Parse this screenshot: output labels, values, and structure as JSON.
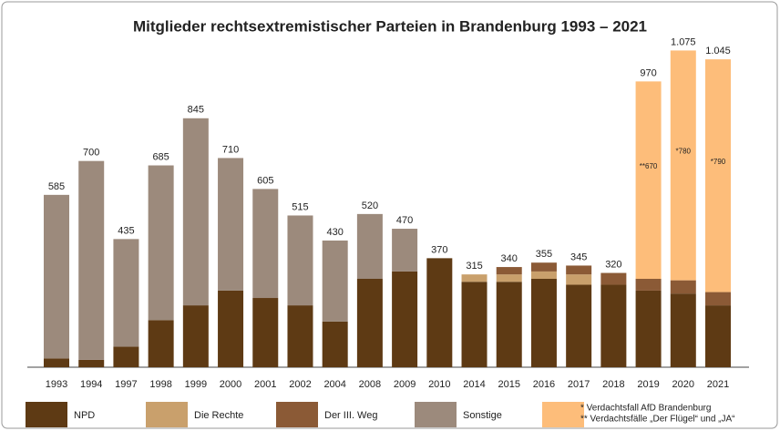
{
  "chart_data": {
    "type": "stacked_bar",
    "title": "Mitglieder rechtsextremistischer Parteien in Brandenburg 1993 – 2021",
    "categories": [
      "1993",
      "1994",
      "1997",
      "1998",
      "1999",
      "2000",
      "2001",
      "2002",
      "2004",
      "2008",
      "2009",
      "2010",
      "2014",
      "2015",
      "2016",
      "2017",
      "2018",
      "2019",
      "2020",
      "2021"
    ],
    "series": [
      {
        "name": "NPD",
        "color": "#5e3a14",
        "values": [
          30,
          25,
          70,
          160,
          210,
          260,
          235,
          210,
          155,
          300,
          325,
          370,
          290,
          290,
          300,
          280,
          280,
          260,
          250,
          210
        ]
      },
      {
        "name": "Die Rechte",
        "color": "#c9a06c",
        "values": [
          null,
          null,
          null,
          null,
          null,
          null,
          null,
          null,
          null,
          null,
          null,
          null,
          25,
          25,
          25,
          35,
          null,
          null,
          null,
          null
        ]
      },
      {
        "name": "Der III. Weg",
        "color": "#8b5a36",
        "values": [
          null,
          null,
          null,
          null,
          null,
          null,
          null,
          null,
          null,
          null,
          null,
          null,
          null,
          25,
          30,
          30,
          40,
          40,
          45,
          45
        ]
      },
      {
        "name": "Sonstige",
        "color": "#9c8a7c",
        "values": [
          555,
          675,
          365,
          525,
          635,
          450,
          370,
          305,
          275,
          220,
          145,
          null,
          null,
          null,
          null,
          null,
          null,
          null,
          null,
          null
        ]
      },
      {
        "name": "* Verdachtsfall AfD Brandenburg",
        "color": "#fdbd7a",
        "values": [
          null,
          null,
          null,
          null,
          null,
          null,
          null,
          null,
          null,
          null,
          null,
          null,
          null,
          null,
          null,
          null,
          null,
          670,
          780,
          790
        ],
        "value_labels": [
          null,
          null,
          null,
          null,
          null,
          null,
          null,
          null,
          null,
          null,
          null,
          null,
          null,
          null,
          null,
          null,
          null,
          "**670",
          "*780",
          "*790"
        ]
      }
    ],
    "totals": [
      585,
      700,
      435,
      685,
      845,
      710,
      605,
      515,
      430,
      520,
      470,
      370,
      315,
      340,
      355,
      345,
      320,
      970,
      1075,
      1045
    ],
    "value_labels": [
      "585",
      "700",
      "435",
      "685",
      "845",
      "710",
      "605",
      "515",
      "430",
      "520",
      "470",
      "370",
      "315",
      "340",
      "355",
      "345",
      "320",
      "970",
      "1.075",
      "1.045"
    ],
    "legend_note": "** Verdachtsfälle „Der Flügel“ und „JA“",
    "ylim": [
      0,
      1200
    ]
  }
}
